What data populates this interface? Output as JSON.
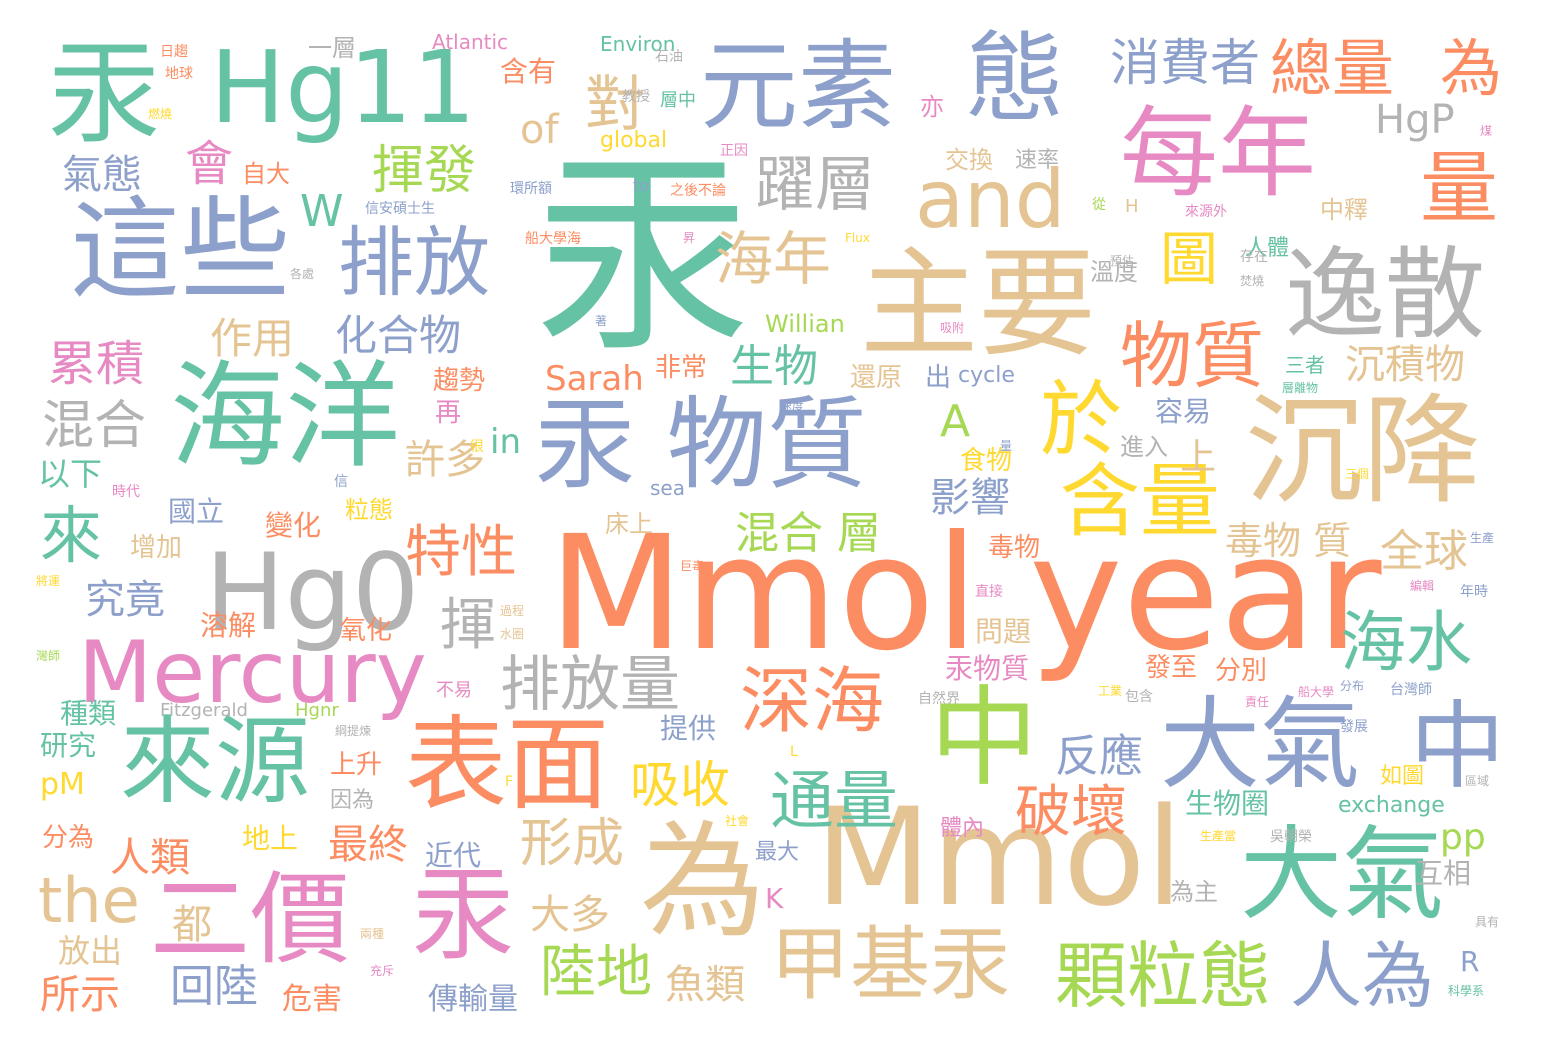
{
  "cloud": {
    "colors": {
      "teal": "#66c2a5",
      "orange": "#fc8d62",
      "blue": "#8da0cb",
      "pink": "#e78ac3",
      "green": "#a6d854",
      "yellow": "#ffd92f",
      "tan": "#e5c494",
      "gray": "#b3b3b3"
    },
    "words": {
      "w1": "汞",
      "w2": "Mmol year",
      "w3": "Mmol",
      "w4": "汞",
      "w5": "Hg11",
      "w6": "元素",
      "w7": "態",
      "w8": "這些",
      "w9": "海洋",
      "w10": "汞 物質",
      "w11": "主要",
      "w12": "沉降",
      "w13": "每年",
      "w14": "逸散",
      "w15": "Hg0",
      "w16": "表面",
      "w17": "中",
      "w18": "大氣",
      "w19": "中",
      "w20": "為",
      "w21": "大氣",
      "w22": "二價",
      "w23": "汞",
      "w24": "來源",
      "w25": "Mercury",
      "w26": "量",
      "w27": "and",
      "w28": "排放",
      "w29": "於",
      "w30": "含量",
      "w31": "物質",
      "w32": "總量",
      "w33": "為",
      "w34": "消費者",
      "w35": "甲基汞",
      "w36": "顆粒態",
      "w37": "人為",
      "w38": "深海",
      "w39": "通量",
      "w40": "排放量",
      "w41": "the",
      "w42": "來",
      "w43": "海水",
      "w44": "躍層",
      "w45": "揮發",
      "w46": "海年",
      "w47": "圖",
      "w48": "HgP",
      "w49": "對",
      "w50": "of",
      "w51": "W",
      "w52": "會",
      "w53": "氣態",
      "w54": "累積",
      "w55": "混合",
      "w56": "特性",
      "w57": "吸收",
      "w58": "形成",
      "w59": "破壞",
      "w60": "陸地",
      "w61": "回陸",
      "w62": "混合 層",
      "w63": "影響",
      "w64": "生物",
      "w65": "沉積物",
      "w66": "Sarah",
      "w67": "in",
      "w68": "A",
      "w69": "化合物",
      "w70": "作用",
      "w71": "究竟",
      "w72": "許多",
      "w73": "大多",
      "w74": "魚類",
      "w75": "揮",
      "w76": "反應",
      "w77": "毒物 質",
      "w78": "全球",
      "w79": "pp",
      "w80": "所示",
      "w81": "都",
      "w82": "人類",
      "w83": "最終",
      "w84": "pM",
      "w85": "以下",
      "w86": "放出",
      "w87": "危害",
      "w88": "傳輸量",
      "w89": "Atlantic",
      "w90": "Environ",
      "w91": "一層",
      "w92": "含有",
      "w93": "global",
      "w94": "cycle",
      "w95": "exchange",
      "w96": "Willian",
      "w97": "Fitzgerald",
      "w98": "Hgnr",
      "w99": "交換",
      "w100": "速率",
      "w101": "溫度",
      "w102": "容易",
      "w103": "上",
      "w104": "食物",
      "w105": "進入",
      "w106": "生物圈",
      "w107": "為主",
      "w108": "互相",
      "w109": "如圖",
      "w110": "自大",
      "w111": "國立",
      "w112": "變化",
      "w113": "粒態",
      "w114": "增加",
      "w115": "溶解",
      "w116": "氧化",
      "w117": "毒物",
      "w118": "問題",
      "w119": "汞物質",
      "w120": "分別",
      "w121": "發至",
      "w122": "種類",
      "w123": "研究",
      "w124": "分為",
      "w125": "上升",
      "w126": "因為",
      "w127": "提供",
      "w128": "地上",
      "w129": "近代",
      "w130": "體內",
      "w131": "最大",
      "w132": "再",
      "w133": "趨勢",
      "w134": "非常",
      "w135": "還原",
      "w136": "出",
      "w137": "sea",
      "w138": "床上",
      "w139": "不易",
      "w140": "三者",
      "w141": "中釋",
      "w142": "人體",
      "w143": "K",
      "w144": "R",
      "w145": "H",
      "w146": "to",
      "w147": "Flux",
      "w148": "日趨",
      "w149": "地球",
      "w150": "燃燒",
      "w151": "教授",
      "w152": "石油",
      "w153": "層中",
      "w154": "亦",
      "w155": "正因",
      "w156": "環所額",
      "w157": "之後不論",
      "w158": "信安碩士生",
      "w159": "船大學海",
      "w160": "各處",
      "w161": "預估",
      "w162": "存在",
      "w163": "從",
      "w164": "來源外",
      "w165": "焚燒",
      "w166": "煤",
      "w167": "很",
      "w168": "信",
      "w169": "時代",
      "w170": "巨毒",
      "w171": "生產",
      "w172": "編輯",
      "w173": "年時",
      "w174": "將運",
      "w175": "過程",
      "w176": "水圈",
      "w177": "工業",
      "w178": "船大學",
      "w179": "分布",
      "w180": "台灣師",
      "w181": "自然界",
      "w182": "包含",
      "w183": "責任",
      "w184": "發展",
      "w185": "區域",
      "w186": "綱提煉",
      "w187": "直接",
      "w188": "社會",
      "w189": "生產當",
      "w190": "吳朝榮",
      "w191": "具有",
      "w192": "科學系",
      "w193": "兩種",
      "w194": "充斥",
      "w195": "灣師",
      "w196": "三個",
      "w197": "層離物",
      "w198": "速度",
      "w199": "量",
      "w200": "吸附",
      "w201": "著",
      "w202": "F",
      "w203": "L",
      "w204": "昇"
    }
  }
}
